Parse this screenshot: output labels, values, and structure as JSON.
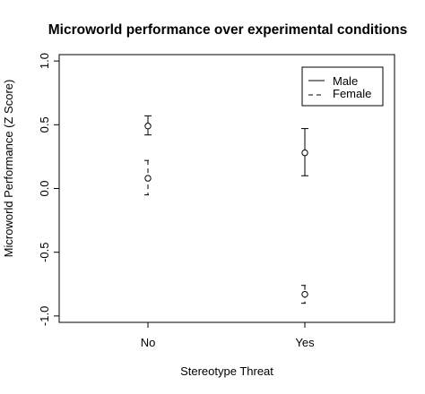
{
  "chart_data": {
    "type": "scatter",
    "title": "Microworld performance over experimental conditions",
    "xlabel": "Stereotype Threat",
    "ylabel": "Microworld Performance (Z Score)",
    "categories": [
      "No",
      "Yes"
    ],
    "ylim": [
      -1.05,
      1.05
    ],
    "yticks": [
      -1.0,
      -0.5,
      0.0,
      0.5,
      1.0
    ],
    "ytick_labels": [
      "-1.0",
      "-0.5",
      "0.0",
      "0.5",
      "1.0"
    ],
    "grid": false,
    "legend": {
      "position": "top-right",
      "entries": [
        {
          "name": "Male",
          "line_style": "solid"
        },
        {
          "name": "Female",
          "line_style": "dashed"
        }
      ]
    },
    "series": [
      {
        "name": "Male",
        "line_style": "solid",
        "values": [
          0.49,
          0.28
        ],
        "lower": [
          0.42,
          0.1
        ],
        "upper": [
          0.57,
          0.47
        ]
      },
      {
        "name": "Female",
        "line_style": "dashed",
        "values": [
          0.08,
          -0.83
        ],
        "lower": [
          -0.05,
          -0.9
        ],
        "upper": [
          0.22,
          -0.76
        ]
      }
    ]
  }
}
